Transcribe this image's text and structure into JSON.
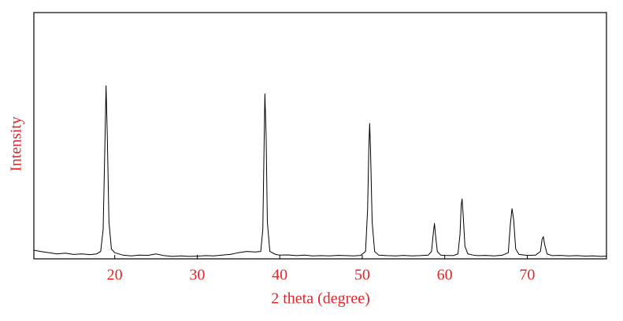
{
  "chart_data": {
    "type": "line",
    "xlabel": "2 theta (degree)",
    "ylabel": "Intensity",
    "color": "#000000",
    "label_color": "#e3262a",
    "xlim": [
      10.2,
      79.6
    ],
    "ylim": [
      0,
      100
    ],
    "xticks": [
      20,
      30,
      40,
      50,
      60,
      70
    ],
    "x": [
      10.2,
      11,
      12,
      13,
      14,
      15,
      16,
      17,
      17.8,
      18.3,
      18.6,
      18.8,
      18.95,
      19.1,
      19.3,
      19.6,
      20,
      21,
      22,
      23,
      24,
      25,
      26,
      27,
      28,
      29,
      30,
      31,
      32,
      33,
      34,
      35,
      36,
      37,
      37.7,
      37.95,
      38.1,
      38.2,
      38.35,
      38.5,
      38.8,
      39.5,
      40,
      41,
      42,
      43,
      44,
      45,
      46,
      47,
      48,
      49,
      49.8,
      50.4,
      50.65,
      50.8,
      50.9,
      51.0,
      51.2,
      51.5,
      52,
      53,
      54,
      55,
      56,
      57,
      58,
      58.4,
      58.6,
      58.75,
      58.9,
      59.1,
      59.5,
      60,
      61,
      61.6,
      61.85,
      62.0,
      62.1,
      62.25,
      62.45,
      62.8,
      63.5,
      64,
      65,
      66,
      67,
      67.7,
      67.95,
      68.15,
      68.35,
      68.6,
      69,
      70,
      71,
      71.6,
      71.8,
      71.95,
      72.1,
      72.4,
      73,
      74,
      75,
      76,
      77,
      78,
      79,
      79.6
    ],
    "values": [
      3.5,
      3,
      2.5,
      2,
      2.3,
      1.8,
      2,
      1.7,
      2,
      3,
      12,
      45,
      70.3,
      50,
      15,
      4,
      2.5,
      1.5,
      1.2,
      1.5,
      1.4,
      2,
      1.3,
      1,
      1.2,
      1,
      1.1,
      1.3,
      1.2,
      1.5,
      1.8,
      2.5,
      3,
      2.8,
      3,
      12,
      45,
      67,
      50,
      15,
      3,
      1.8,
      1.5,
      1.6,
      1.3,
      1.5,
      1.2,
      1.3,
      1.2,
      1.4,
      1.3,
      1.2,
      1.4,
      3,
      20,
      45,
      55,
      45,
      15,
      3,
      1.5,
      1.3,
      1.2,
      1.4,
      1.2,
      1.3,
      1.5,
      3,
      10,
      14.4,
      9,
      3,
      1.5,
      1.4,
      1.3,
      2,
      10,
      22,
      24.3,
      17,
      5,
      2,
      1.5,
      1.3,
      1.4,
      1.2,
      1.5,
      2.5,
      14,
      20.4,
      16,
      4,
      1.8,
      1.4,
      1.5,
      3,
      8,
      9,
      6,
      2,
      1.3,
      1.4,
      1.2,
      1.3,
      1.1,
      1.2,
      1,
      1.1
    ]
  }
}
